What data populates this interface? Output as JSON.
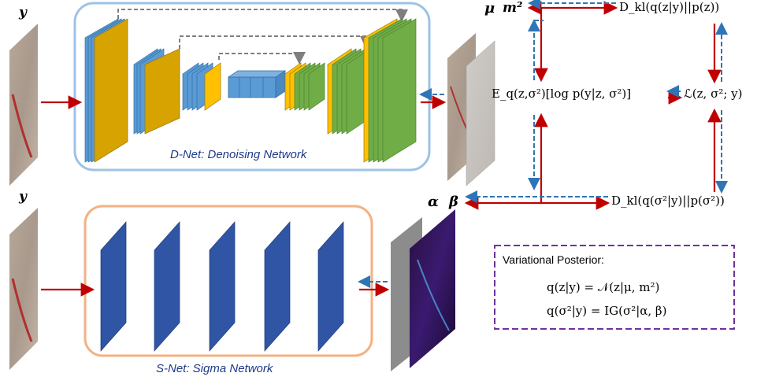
{
  "dnet": {
    "title": "D-Net: Denoising Network",
    "box_color": "#9dc3e6",
    "layer_colors": {
      "encoder": "#5b9bd5",
      "bottleneck": "#5b9bd5",
      "decoder": "#70ad47",
      "concat": "#ffc000",
      "pool": "#d6a300"
    }
  },
  "snet": {
    "title": "S-Net: Sigma Network",
    "box_color": "#f4b183",
    "layer_color": "#2f55a4"
  },
  "inputs": {
    "top_label": "y",
    "bottom_label": "y"
  },
  "outputs": {
    "mu": "μ",
    "m2": "m²",
    "alpha": "α",
    "beta": "β"
  },
  "equations": {
    "dkl_z": "D_kl(q(z|y)||p(z))",
    "expect": "E_q(z,σ²)[log p(y|z, σ²)]",
    "elbo": "ℒ(z, σ²; y)",
    "dkl_sigma": "D_kl(q(σ²|y)||p(σ²))"
  },
  "posterior": {
    "title": "Variational Posterior:",
    "line1": "q(z|y) = 𝒩(z|μ, m²)",
    "line2": "q(σ²|y) = IG(σ²|α, β)",
    "border_color": "#7030a0"
  },
  "arrow_colors": {
    "forward": "#c00000",
    "backward": "#2e75b6",
    "skip": "#7f7f7f"
  }
}
